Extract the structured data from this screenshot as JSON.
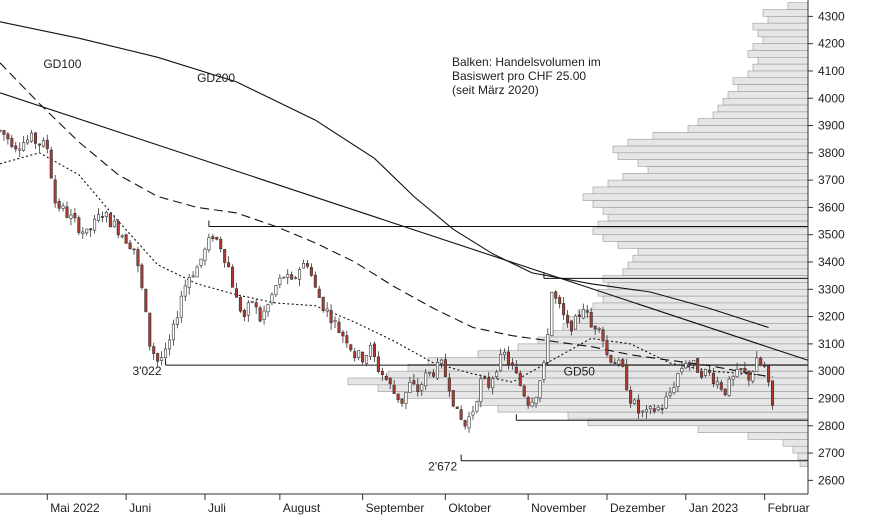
{
  "chart_data": {
    "type": "candlestick",
    "title": "",
    "ylim": [
      2550,
      4360
    ],
    "y_ticks": [
      2600,
      2700,
      2800,
      2900,
      3000,
      3100,
      3200,
      3300,
      3400,
      3500,
      3600,
      3700,
      3800,
      3900,
      4000,
      4100,
      4200,
      4300
    ],
    "y_tick_labels": [
      "2600",
      "2700",
      "2800",
      "2900",
      "3000",
      "3100",
      "3200",
      "3300",
      "3400",
      "3500",
      "3600",
      "3700",
      "3800",
      "3900",
      "4000",
      "4100",
      "4200",
      "4300"
    ],
    "x_range": [
      0,
      205
    ],
    "x_ticks": [
      {
        "label": "Mai 2022",
        "x": 12
      },
      {
        "label": "Juni",
        "x": 32
      },
      {
        "label": "Juli",
        "x": 52
      },
      {
        "label": "August",
        "x": 71
      },
      {
        "label": "September",
        "x": 92
      },
      {
        "label": "Oktober",
        "x": 113
      },
      {
        "label": "November",
        "x": 134
      },
      {
        "label": "Dezember",
        "x": 154
      },
      {
        "label": "Jan 2023",
        "x": 174
      },
      {
        "label": "Februar",
        "x": 194
      }
    ],
    "price_anchors": [
      [
        0,
        3880
      ],
      [
        4,
        3830
      ],
      [
        8,
        3850
      ],
      [
        12,
        3820
      ],
      [
        14,
        3620
      ],
      [
        18,
        3560
      ],
      [
        22,
        3500
      ],
      [
        26,
        3580
      ],
      [
        30,
        3520
      ],
      [
        34,
        3450
      ],
      [
        36,
        3300
      ],
      [
        38,
        3100
      ],
      [
        40,
        3040
      ],
      [
        42,
        3060
      ],
      [
        44,
        3150
      ],
      [
        46,
        3280
      ],
      [
        48,
        3350
      ],
      [
        50,
        3380
      ],
      [
        52,
        3440
      ],
      [
        54,
        3500
      ],
      [
        56,
        3460
      ],
      [
        58,
        3380
      ],
      [
        60,
        3260
      ],
      [
        62,
        3200
      ],
      [
        64,
        3260
      ],
      [
        66,
        3190
      ],
      [
        68,
        3240
      ],
      [
        70,
        3310
      ],
      [
        72,
        3350
      ],
      [
        74,
        3320
      ],
      [
        76,
        3380
      ],
      [
        78,
        3400
      ],
      [
        80,
        3300
      ],
      [
        82,
        3240
      ],
      [
        84,
        3200
      ],
      [
        86,
        3150
      ],
      [
        88,
        3120
      ],
      [
        90,
        3060
      ],
      [
        92,
        3050
      ],
      [
        94,
        3080
      ],
      [
        96,
        3010
      ],
      [
        98,
        2970
      ],
      [
        100,
        2920
      ],
      [
        102,
        2890
      ],
      [
        104,
        2950
      ],
      [
        106,
        2930
      ],
      [
        108,
        2980
      ],
      [
        110,
        3000
      ],
      [
        112,
        3020
      ],
      [
        114,
        2950
      ],
      [
        116,
        2840
      ],
      [
        118,
        2800
      ],
      [
        120,
        2860
      ],
      [
        122,
        2960
      ],
      [
        124,
        2950
      ],
      [
        126,
        3020
      ],
      [
        128,
        3060
      ],
      [
        130,
        3010
      ],
      [
        132,
        2950
      ],
      [
        134,
        2890
      ],
      [
        136,
        2920
      ],
      [
        138,
        3010
      ],
      [
        140,
        3290
      ],
      [
        142,
        3230
      ],
      [
        144,
        3160
      ],
      [
        146,
        3180
      ],
      [
        148,
        3240
      ],
      [
        150,
        3160
      ],
      [
        152,
        3180
      ],
      [
        154,
        3060
      ],
      [
        156,
        3040
      ],
      [
        158,
        3000
      ],
      [
        160,
        2900
      ],
      [
        162,
        2850
      ],
      [
        164,
        2840
      ],
      [
        166,
        2860
      ],
      [
        168,
        2870
      ],
      [
        170,
        2920
      ],
      [
        172,
        2990
      ],
      [
        174,
        3040
      ],
      [
        176,
        3020
      ],
      [
        178,
        3000
      ],
      [
        180,
        2990
      ],
      [
        182,
        2960
      ],
      [
        184,
        2930
      ],
      [
        186,
        2970
      ],
      [
        188,
        3000
      ],
      [
        190,
        2980
      ],
      [
        192,
        3030
      ],
      [
        194,
        3010
      ],
      [
        196,
        2870
      ]
    ],
    "moving_averages": [
      {
        "name": "GD200",
        "points": [
          [
            0,
            4280
          ],
          [
            20,
            4220
          ],
          [
            40,
            4150
          ],
          [
            60,
            4060
          ],
          [
            80,
            3920
          ],
          [
            95,
            3780
          ],
          [
            105,
            3640
          ],
          [
            115,
            3520
          ],
          [
            125,
            3430
          ],
          [
            135,
            3360
          ],
          [
            150,
            3320
          ],
          [
            165,
            3290
          ],
          [
            180,
            3230
          ],
          [
            195,
            3160
          ]
        ]
      },
      {
        "name": "GD100",
        "points": [
          [
            0,
            4130
          ],
          [
            10,
            3980
          ],
          [
            20,
            3840
          ],
          [
            30,
            3720
          ],
          [
            40,
            3640
          ],
          [
            50,
            3600
          ],
          [
            60,
            3580
          ],
          [
            70,
            3530
          ],
          [
            80,
            3470
          ],
          [
            90,
            3400
          ],
          [
            100,
            3310
          ],
          [
            110,
            3230
          ],
          [
            120,
            3160
          ],
          [
            130,
            3130
          ],
          [
            140,
            3110
          ],
          [
            150,
            3090
          ],
          [
            160,
            3060
          ],
          [
            170,
            3040
          ],
          [
            180,
            3020
          ],
          [
            195,
            2980
          ]
        ]
      },
      {
        "name": "GD50",
        "points": [
          [
            0,
            3760
          ],
          [
            10,
            3800
          ],
          [
            20,
            3720
          ],
          [
            30,
            3550
          ],
          [
            40,
            3390
          ],
          [
            50,
            3320
          ],
          [
            60,
            3280
          ],
          [
            70,
            3250
          ],
          [
            80,
            3240
          ],
          [
            90,
            3180
          ],
          [
            100,
            3110
          ],
          [
            110,
            3030
          ],
          [
            120,
            2990
          ],
          [
            130,
            2960
          ],
          [
            140,
            3040
          ],
          [
            150,
            3120
          ],
          [
            160,
            3100
          ],
          [
            170,
            3030
          ],
          [
            180,
            3000
          ],
          [
            190,
            2990
          ],
          [
            196,
            2980
          ]
        ]
      }
    ],
    "trendlines": [
      {
        "from": [
          0,
          4020
        ],
        "to": [
          205,
          3040
        ]
      }
    ],
    "horizontal_levels": [
      {
        "value": 3530,
        "from_x": 53,
        "label": ""
      },
      {
        "value": 3340,
        "from_x": 138,
        "label": ""
      },
      {
        "value": 3022,
        "from_x": 42,
        "label": "3'022"
      },
      {
        "value": 2820,
        "from_x": 131,
        "label": ""
      },
      {
        "value": 2672,
        "from_x": 117,
        "label": "2'672"
      }
    ],
    "volume_profile": {
      "note": "Balken: Handelsvolumen im Basiswert pro CHF 25.00 (seit März 2020)",
      "bins": [
        [
          4337.5,
          20
        ],
        [
          4312.5,
          45
        ],
        [
          4287.5,
          40
        ],
        [
          4262.5,
          55
        ],
        [
          4237.5,
          50
        ],
        [
          4212.5,
          45
        ],
        [
          4187.5,
          55
        ],
        [
          4162.5,
          60
        ],
        [
          4137.5,
          50
        ],
        [
          4112.5,
          55
        ],
        [
          4087.5,
          60
        ],
        [
          4062.5,
          75
        ],
        [
          4037.5,
          70
        ],
        [
          4012.5,
          80
        ],
        [
          3987.5,
          85
        ],
        [
          3962.5,
          90
        ],
        [
          3937.5,
          95
        ],
        [
          3912.5,
          110
        ],
        [
          3887.5,
          120
        ],
        [
          3862.5,
          155
        ],
        [
          3837.5,
          180
        ],
        [
          3812.5,
          195
        ],
        [
          3787.5,
          190
        ],
        [
          3762.5,
          170
        ],
        [
          3737.5,
          160
        ],
        [
          3712.5,
          185
        ],
        [
          3687.5,
          200
        ],
        [
          3662.5,
          215
        ],
        [
          3637.5,
          225
        ],
        [
          3612.5,
          215
        ],
        [
          3587.5,
          205
        ],
        [
          3562.5,
          200
        ],
        [
          3537.5,
          210
        ],
        [
          3512.5,
          215
        ],
        [
          3487.5,
          205
        ],
        [
          3462.5,
          190
        ],
        [
          3437.5,
          170
        ],
        [
          3412.5,
          175
        ],
        [
          3387.5,
          180
        ],
        [
          3362.5,
          185
        ],
        [
          3337.5,
          205
        ],
        [
          3312.5,
          200
        ],
        [
          3287.5,
          210
        ],
        [
          3262.5,
          205
        ],
        [
          3237.5,
          215
        ],
        [
          3212.5,
          230
        ],
        [
          3187.5,
          240
        ],
        [
          3162.5,
          245
        ],
        [
          3137.5,
          255
        ],
        [
          3112.5,
          270
        ],
        [
          3087.5,
          290
        ],
        [
          3062.5,
          330
        ],
        [
          3037.5,
          380
        ],
        [
          3012.5,
          400
        ],
        [
          2987.5,
          420
        ],
        [
          2962.5,
          460
        ],
        [
          2937.5,
          430
        ],
        [
          2912.5,
          410
        ],
        [
          2887.5,
          330
        ],
        [
          2862.5,
          310
        ],
        [
          2837.5,
          240
        ],
        [
          2812.5,
          220
        ],
        [
          2787.5,
          110
        ],
        [
          2762.5,
          60
        ],
        [
          2737.5,
          25
        ],
        [
          2712.5,
          15
        ],
        [
          2687.5,
          10
        ],
        [
          2662.5,
          8
        ]
      ]
    },
    "annotations": [
      {
        "text": "GD100",
        "x": 11,
        "y": 4110
      },
      {
        "text": "GD200",
        "x": 50,
        "y": 4060
      },
      {
        "text": "GD50",
        "x": 143,
        "y": 2985
      }
    ],
    "colors": {
      "candle_up": "#ffffff",
      "candle_down": "#b03a2e",
      "candle_outline": "#333333",
      "volume_fill": "#e6e6e6",
      "volume_edge": "#9a9a9a",
      "line": "#111111",
      "axis": "#333333"
    }
  }
}
